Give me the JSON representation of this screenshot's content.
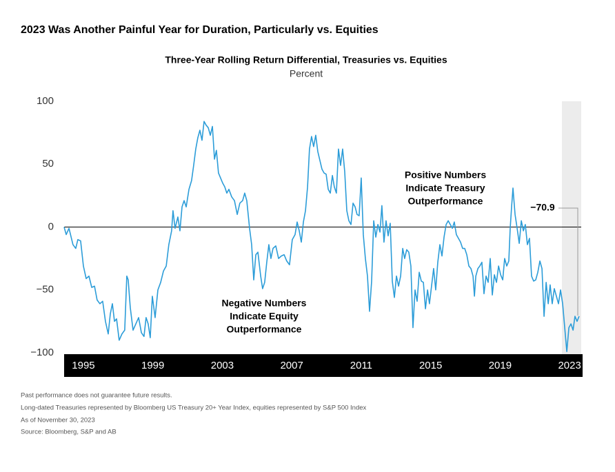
{
  "header": {
    "title": "2023 Was Another Painful Year for Duration, Particularly vs. Equities"
  },
  "chart_data": {
    "type": "line",
    "title": "Three-Year Rolling Return Differential, Treasuries vs. Equities",
    "subtitle": "Percent",
    "color": "#2b9cd8",
    "xlim": [
      1993.89,
      2023.67
    ],
    "xticks": [
      1995,
      1999,
      2003,
      2007,
      2011,
      2015,
      2019,
      2023
    ],
    "ylim": [
      -100,
      100
    ],
    "yticks": [
      100,
      50,
      0,
      {
        "value": -50,
        "label": "−50"
      },
      {
        "value": -100,
        "label": "−100"
      }
    ],
    "x": [
      1993.89,
      1994.01,
      1994.17,
      1994.4,
      1994.56,
      1994.68,
      1994.84,
      1995.0,
      1995.16,
      1995.32,
      1995.48,
      1995.64,
      1995.79,
      1995.95,
      1996.11,
      1996.27,
      1996.43,
      1996.55,
      1996.67,
      1996.79,
      1996.91,
      1997.06,
      1997.22,
      1997.38,
      1997.5,
      1997.58,
      1997.7,
      1997.86,
      1998.02,
      1998.18,
      1998.34,
      1998.49,
      1998.61,
      1998.73,
      1998.85,
      1998.97,
      1999.13,
      1999.29,
      1999.45,
      1999.61,
      1999.77,
      1999.92,
      2000.08,
      2000.16,
      2000.28,
      2000.44,
      2000.56,
      2000.68,
      2000.8,
      2000.92,
      2001.08,
      2001.23,
      2001.35,
      2001.47,
      2001.59,
      2001.71,
      2001.83,
      2001.95,
      2002.07,
      2002.19,
      2002.31,
      2002.43,
      2002.55,
      2002.66,
      2002.78,
      2002.9,
      2003.02,
      2003.14,
      2003.26,
      2003.38,
      2003.54,
      2003.7,
      2003.86,
      2004.01,
      2004.17,
      2004.29,
      2004.41,
      2004.57,
      2004.69,
      2004.81,
      2004.93,
      2005.05,
      2005.21,
      2005.32,
      2005.44,
      2005.56,
      2005.68,
      2005.8,
      2005.92,
      2006.08,
      2006.24,
      2006.4,
      2006.56,
      2006.71,
      2006.87,
      2007.03,
      2007.19,
      2007.31,
      2007.43,
      2007.55,
      2007.67,
      2007.79,
      2007.91,
      2008.02,
      2008.14,
      2008.26,
      2008.38,
      2008.5,
      2008.62,
      2008.74,
      2008.86,
      2008.98,
      2009.1,
      2009.22,
      2009.34,
      2009.45,
      2009.57,
      2009.69,
      2009.81,
      2009.93,
      2010.05,
      2010.17,
      2010.29,
      2010.41,
      2010.53,
      2010.65,
      2010.76,
      2010.88,
      2011.0,
      2011.12,
      2011.24,
      2011.36,
      2011.48,
      2011.6,
      2011.72,
      2011.84,
      2011.96,
      2012.08,
      2012.19,
      2012.31,
      2012.43,
      2012.55,
      2012.67,
      2012.79,
      2012.91,
      2013.03,
      2013.15,
      2013.27,
      2013.39,
      2013.5,
      2013.62,
      2013.74,
      2013.86,
      2013.98,
      2014.1,
      2014.22,
      2014.34,
      2014.46,
      2014.58,
      2014.7,
      2014.82,
      2014.93,
      2015.05,
      2015.17,
      2015.29,
      2015.41,
      2015.53,
      2015.65,
      2015.77,
      2015.89,
      2016.01,
      2016.13,
      2016.25,
      2016.36,
      2016.48,
      2016.6,
      2016.72,
      2016.84,
      2016.96,
      2017.08,
      2017.2,
      2017.32,
      2017.44,
      2017.52,
      2017.6,
      2017.72,
      2017.83,
      2017.95,
      2018.07,
      2018.19,
      2018.31,
      2018.43,
      2018.55,
      2018.67,
      2018.79,
      2018.91,
      2019.03,
      2019.15,
      2019.26,
      2019.38,
      2019.5,
      2019.58,
      2019.66,
      2019.74,
      2019.86,
      2019.98,
      2020.1,
      2020.22,
      2020.34,
      2020.45,
      2020.57,
      2020.69,
      2020.81,
      2020.93,
      2021.05,
      2021.17,
      2021.29,
      2021.41,
      2021.53,
      2021.65,
      2021.77,
      2021.88,
      2022.0,
      2022.12,
      2022.24,
      2022.36,
      2022.48,
      2022.6,
      2022.72,
      2022.84,
      2022.96,
      2023.08,
      2023.2,
      2023.31,
      2023.43,
      2023.55
    ],
    "values": [
      0,
      -6,
      -1,
      -14,
      -17,
      -10,
      -11,
      -31,
      -41,
      -39,
      -48,
      -47,
      -58,
      -61,
      -59,
      -75,
      -85,
      -69,
      -61,
      -75,
      -73,
      -90,
      -85,
      -82,
      -39,
      -42,
      -64,
      -82,
      -77,
      -72,
      -84,
      -87,
      -72,
      -77,
      -88,
      -55,
      -72,
      -50,
      -44,
      -35,
      -31,
      -14,
      -3,
      13,
      -1,
      8,
      -3,
      16,
      21,
      16,
      30,
      37,
      49,
      62,
      71,
      77,
      69,
      84,
      81,
      79,
      73,
      80,
      54,
      61,
      43,
      39,
      35,
      32,
      27,
      30,
      24,
      21,
      10,
      19,
      21,
      27,
      21,
      -1,
      -14,
      -42,
      -22,
      -20,
      -39,
      -49,
      -44,
      -28,
      -14,
      -25,
      -17,
      -15,
      -25,
      -23,
      -22,
      -27,
      -30,
      -10,
      -6,
      4,
      -3,
      -12,
      4,
      13,
      32,
      62,
      72,
      64,
      73,
      60,
      53,
      46,
      43,
      42,
      30,
      27,
      41,
      32,
      27,
      62,
      49,
      62,
      44,
      13,
      5,
      2,
      19,
      16,
      10,
      9,
      39,
      -6,
      -25,
      -39,
      -67,
      -43,
      5,
      -8,
      2,
      -4,
      17,
      -12,
      5,
      -7,
      3,
      -43,
      -56,
      -39,
      -47,
      -39,
      -17,
      -25,
      -18,
      -20,
      -31,
      -80,
      -50,
      -59,
      -36,
      -43,
      -44,
      -65,
      -50,
      -61,
      -47,
      -33,
      -50,
      -28,
      -14,
      -23,
      -8,
      2,
      5,
      2,
      -1,
      4,
      -6,
      -9,
      -12,
      -17,
      -17,
      -22,
      -31,
      -33,
      -39,
      -55,
      -39,
      -33,
      -31,
      -28,
      -53,
      -39,
      -44,
      -25,
      -54,
      -38,
      -44,
      -31,
      -38,
      -42,
      -25,
      -31,
      -27,
      -1,
      16,
      31,
      10,
      -1,
      -13,
      5,
      -3,
      2,
      -14,
      -9,
      -39,
      -43,
      -42,
      -36,
      -27,
      -33,
      -71,
      -44,
      -61,
      -46,
      -61,
      -49,
      -55,
      -61,
      -50,
      -61,
      -80,
      -99,
      -80,
      -77,
      -82,
      -71,
      -75,
      -70.9
    ],
    "annotations": [
      {
        "lines": [
          "Positive Numbers",
          "Indicate Treasury",
          "Outperformance"
        ]
      },
      {
        "lines": [
          "Negative Numbers",
          "Indicate Equity",
          "Outperformance"
        ]
      },
      {
        "text": "−70.9"
      }
    ]
  },
  "footnotes": [
    "Past performance does not guarantee future results.",
    "Long-dated Treasuries represented by Bloomberg US Treasury 20+ Year Index, equities represented by S&P 500 Index",
    "As of November 30, 2023",
    "Source: Bloomberg, S&P and AB"
  ]
}
